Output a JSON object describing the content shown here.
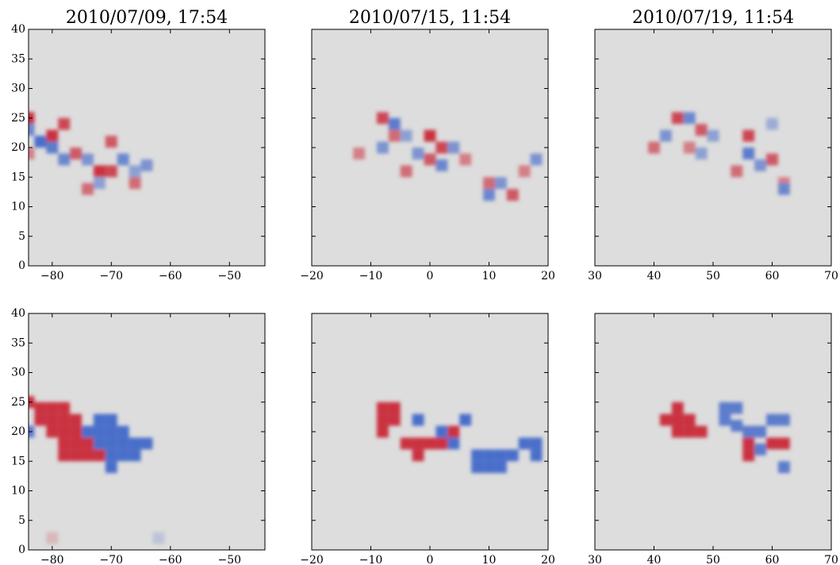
{
  "chart_data": [
    {
      "type": "heatmap",
      "title": "2010/07/09, 17:54",
      "xlim": [
        -84,
        -44
      ],
      "ylim": [
        0,
        40
      ],
      "xticks": [
        {
          "value": -80,
          "label": "−80"
        },
        {
          "value": -70,
          "label": "−70"
        },
        {
          "value": -60,
          "label": "−60"
        },
        {
          "value": -50,
          "label": "−50"
        }
      ],
      "yticks": [
        0,
        5,
        10,
        15,
        20,
        25,
        30,
        35,
        40
      ],
      "ytick_labels": true,
      "positive_color": "#c8202f",
      "negative_color": "#3a62c8",
      "background": "#dddddd",
      "cells": [
        [
          -84,
          25,
          0.9
        ],
        [
          -80,
          22,
          0.9
        ],
        [
          -78,
          24,
          0.8
        ],
        [
          -76,
          19,
          0.7
        ],
        [
          -72,
          16,
          0.9
        ],
        [
          -70,
          16,
          0.8
        ],
        [
          -70,
          21,
          0.7
        ],
        [
          -74,
          13,
          0.6
        ],
        [
          -66,
          14,
          0.6
        ],
        [
          -84,
          19,
          0.5
        ],
        [
          -82,
          21,
          -0.9
        ],
        [
          -80,
          20,
          -0.8
        ],
        [
          -84,
          23,
          -0.7
        ],
        [
          -78,
          18,
          -0.7
        ],
        [
          -74,
          18,
          -0.6
        ],
        [
          -68,
          18,
          -0.7
        ],
        [
          -64,
          17,
          -0.6
        ],
        [
          -72,
          14,
          -0.5
        ],
        [
          -66,
          16,
          -0.5
        ]
      ]
    },
    {
      "type": "heatmap",
      "title": "2010/07/15, 11:54",
      "xlim": [
        -20,
        20
      ],
      "ylim": [
        0,
        40
      ],
      "xticks": [
        {
          "value": -20,
          "label": "−20"
        },
        {
          "value": -10,
          "label": "−10"
        },
        0,
        10,
        20
      ],
      "yticks": [
        0,
        5,
        10,
        15,
        20,
        25,
        30,
        35,
        40
      ],
      "ytick_labels": false,
      "positive_color": "#c8202f",
      "negative_color": "#3a62c8",
      "background": "#dddddd",
      "cells": [
        [
          -8,
          25,
          0.8
        ],
        [
          -6,
          22,
          0.6
        ],
        [
          0,
          22,
          0.9
        ],
        [
          2,
          20,
          0.8
        ],
        [
          0,
          18,
          0.7
        ],
        [
          -4,
          16,
          0.6
        ],
        [
          10,
          14,
          0.6
        ],
        [
          14,
          12,
          0.7
        ],
        [
          16,
          16,
          0.5
        ],
        [
          -12,
          19,
          0.5
        ],
        [
          6,
          18,
          0.5
        ],
        [
          -6,
          24,
          -0.8
        ],
        [
          -8,
          20,
          -0.6
        ],
        [
          -2,
          19,
          -0.6
        ],
        [
          2,
          17,
          -0.7
        ],
        [
          4,
          20,
          -0.6
        ],
        [
          12,
          14,
          -0.6
        ],
        [
          10,
          12,
          -0.7
        ],
        [
          18,
          18,
          -0.6
        ],
        [
          -4,
          22,
          -0.5
        ]
      ]
    },
    {
      "type": "heatmap",
      "title": "2010/07/19, 11:54",
      "xlim": [
        30,
        70
      ],
      "ylim": [
        0,
        40
      ],
      "xticks": [
        30,
        40,
        50,
        60,
        70
      ],
      "yticks": [
        0,
        5,
        10,
        15,
        20,
        25,
        30,
        35,
        40
      ],
      "ytick_labels": false,
      "positive_color": "#c8202f",
      "negative_color": "#3a62c8",
      "background": "#dddddd",
      "cells": [
        [
          44,
          25,
          0.8
        ],
        [
          48,
          23,
          0.7
        ],
        [
          40,
          20,
          0.6
        ],
        [
          56,
          22,
          0.8
        ],
        [
          60,
          18,
          0.7
        ],
        [
          54,
          16,
          0.6
        ],
        [
          46,
          20,
          0.5
        ],
        [
          62,
          14,
          0.5
        ],
        [
          46,
          25,
          -0.7
        ],
        [
          42,
          22,
          -0.6
        ],
        [
          50,
          22,
          -0.5
        ],
        [
          56,
          19,
          -0.8
        ],
        [
          58,
          17,
          -0.6
        ],
        [
          62,
          13,
          -0.7
        ],
        [
          48,
          19,
          -0.5
        ],
        [
          60,
          24,
          -0.4
        ]
      ]
    },
    {
      "type": "heatmap",
      "xlim": [
        -84,
        -44
      ],
      "ylim": [
        0,
        40
      ],
      "xticks": [
        {
          "value": -80,
          "label": "−80"
        },
        {
          "value": -70,
          "label": "−70"
        },
        {
          "value": -60,
          "label": "−60"
        },
        {
          "value": -50,
          "label": "−50"
        }
      ],
      "yticks": [
        0,
        5,
        10,
        15,
        20,
        25,
        30,
        35,
        40
      ],
      "ytick_labels": true,
      "positive_color": "#c8202f",
      "negative_color": "#3a62c8",
      "background": "#dddddd",
      "cells": [
        [
          -84,
          25,
          0.9
        ],
        [
          -82,
          24,
          0.9
        ],
        [
          -80,
          24,
          0.9
        ],
        [
          -78,
          24,
          0.9
        ],
        [
          -82,
          22,
          0.9
        ],
        [
          -80,
          22,
          0.9
        ],
        [
          -78,
          22,
          0.9
        ],
        [
          -76,
          22,
          0.9
        ],
        [
          -80,
          20,
          0.9
        ],
        [
          -78,
          20,
          0.9
        ],
        [
          -76,
          20,
          0.9
        ],
        [
          -78,
          18,
          0.9
        ],
        [
          -76,
          18,
          0.9
        ],
        [
          -74,
          18,
          0.9
        ],
        [
          -78,
          16,
          0.9
        ],
        [
          -76,
          16,
          0.9
        ],
        [
          -74,
          16,
          0.9
        ],
        [
          -72,
          16,
          0.9
        ],
        [
          -84,
          20,
          -0.8
        ],
        [
          -72,
          22,
          -0.9
        ],
        [
          -70,
          22,
          -0.9
        ],
        [
          -74,
          20,
          -0.9
        ],
        [
          -72,
          20,
          -0.9
        ],
        [
          -70,
          20,
          -0.9
        ],
        [
          -68,
          20,
          -0.9
        ],
        [
          -72,
          18,
          -0.9
        ],
        [
          -70,
          18,
          -0.9
        ],
        [
          -68,
          18,
          -0.9
        ],
        [
          -66,
          18,
          -0.9
        ],
        [
          -64,
          18,
          -0.9
        ],
        [
          -70,
          16,
          -0.9
        ],
        [
          -68,
          16,
          -0.9
        ],
        [
          -66,
          16,
          -0.9
        ],
        [
          -70,
          14,
          -0.9
        ],
        [
          -80,
          2,
          0.2
        ],
        [
          -62,
          2,
          -0.2
        ]
      ]
    },
    {
      "type": "heatmap",
      "xlim": [
        -20,
        20
      ],
      "ylim": [
        0,
        40
      ],
      "xticks": [
        {
          "value": -20,
          "label": "−20"
        },
        {
          "value": -10,
          "label": "−10"
        },
        0,
        10,
        20
      ],
      "yticks": [
        0,
        5,
        10,
        15,
        20,
        25,
        30,
        35,
        40
      ],
      "ytick_labels": false,
      "positive_color": "#c8202f",
      "negative_color": "#3a62c8",
      "background": "#dddddd",
      "cells": [
        [
          -8,
          24,
          0.9
        ],
        [
          -6,
          24,
          0.9
        ],
        [
          -8,
          22,
          0.9
        ],
        [
          -6,
          22,
          0.9
        ],
        [
          -8,
          20,
          0.9
        ],
        [
          -4,
          18,
          0.9
        ],
        [
          -2,
          18,
          0.9
        ],
        [
          0,
          18,
          0.9
        ],
        [
          2,
          18,
          0.9
        ],
        [
          -2,
          16,
          0.9
        ],
        [
          4,
          20,
          0.9
        ],
        [
          -2,
          22,
          -0.9
        ],
        [
          2,
          20,
          -0.9
        ],
        [
          6,
          22,
          -0.9
        ],
        [
          4,
          18,
          -0.9
        ],
        [
          8,
          16,
          -0.9
        ],
        [
          10,
          16,
          -0.9
        ],
        [
          12,
          16,
          -0.9
        ],
        [
          8,
          14,
          -0.9
        ],
        [
          10,
          14,
          -0.9
        ],
        [
          12,
          14,
          -0.9
        ],
        [
          14,
          16,
          -0.9
        ],
        [
          16,
          18,
          -0.9
        ],
        [
          18,
          18,
          -0.9
        ],
        [
          18,
          16,
          -0.9
        ]
      ]
    },
    {
      "type": "heatmap",
      "xlim": [
        30,
        70
      ],
      "ylim": [
        0,
        40
      ],
      "xticks": [
        30,
        40,
        50,
        60,
        70
      ],
      "yticks": [
        0,
        5,
        10,
        15,
        20,
        25,
        30,
        35,
        40
      ],
      "ytick_labels": false,
      "positive_color": "#c8202f",
      "negative_color": "#3a62c8",
      "background": "#dddddd",
      "cells": [
        [
          44,
          24,
          0.9
        ],
        [
          42,
          22,
          0.9
        ],
        [
          44,
          22,
          0.9
        ],
        [
          46,
          22,
          0.9
        ],
        [
          44,
          20,
          0.9
        ],
        [
          46,
          20,
          0.9
        ],
        [
          48,
          20,
          0.9
        ],
        [
          56,
          18,
          0.9
        ],
        [
          56,
          16,
          0.9
        ],
        [
          60,
          18,
          0.9
        ],
        [
          62,
          18,
          0.9
        ],
        [
          52,
          24,
          -0.8
        ],
        [
          54,
          24,
          -0.8
        ],
        [
          52,
          22,
          -0.8
        ],
        [
          54,
          21,
          -0.8
        ],
        [
          56,
          20,
          -0.8
        ],
        [
          58,
          20,
          -0.8
        ],
        [
          60,
          22,
          -0.8
        ],
        [
          62,
          22,
          -0.8
        ],
        [
          62,
          14,
          -0.8
        ],
        [
          58,
          17,
          -0.8
        ]
      ]
    }
  ]
}
